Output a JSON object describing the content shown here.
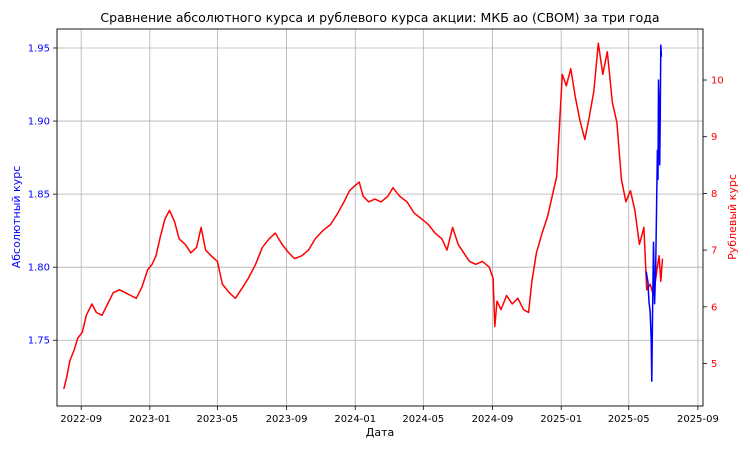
{
  "chart_data": {
    "type": "line",
    "title": "Сравнение абсолютного курса и рублевого курса акции: МКБ ао (CBOM) за три года",
    "xlabel": "Дата",
    "ylabel_left": "Абсолютный курс",
    "ylabel_right": "Рублевый курс",
    "grid": true,
    "x_range": [
      "2022-07-20",
      "2025-09-10"
    ],
    "x_ticks": [
      "2022-09",
      "2023-01",
      "2023-05",
      "2023-09",
      "2024-01",
      "2024-05",
      "2024-09",
      "2025-01",
      "2025-05",
      "2025-09"
    ],
    "y_left_range": [
      1.705,
      1.963
    ],
    "y_left_ticks": [
      "1.75",
      "1.80",
      "1.85",
      "1.90",
      "1.95"
    ],
    "y_right_range": [
      4.25,
      10.9
    ],
    "y_right_ticks": [
      "5",
      "6",
      "7",
      "8",
      "9",
      "10"
    ],
    "colors": {
      "absolute": "#0000ff",
      "ruble": "#ff0000",
      "grid": "#b0b0b0",
      "axis": "#000000"
    },
    "series": [
      {
        "axis": "left",
        "color": "#0000ff",
        "points": [
          [
            "2025-06-01",
            1.797
          ],
          [
            "2025-06-04",
            1.79
          ],
          [
            "2025-06-06",
            1.776
          ],
          [
            "2025-06-08",
            1.77
          ],
          [
            "2025-06-10",
            1.75
          ],
          [
            "2025-06-11",
            1.722
          ],
          [
            "2025-06-12",
            1.76
          ],
          [
            "2025-06-14",
            1.817
          ],
          [
            "2025-06-16",
            1.775
          ],
          [
            "2025-06-18",
            1.8
          ],
          [
            "2025-06-21",
            1.88
          ],
          [
            "2025-06-22",
            1.86
          ],
          [
            "2025-06-23",
            1.928
          ],
          [
            "2025-06-24",
            1.91
          ],
          [
            "2025-06-25",
            1.87
          ],
          [
            "2025-06-26",
            1.9
          ],
          [
            "2025-06-27",
            1.952
          ],
          [
            "2025-06-28",
            1.944
          ]
        ]
      },
      {
        "axis": "right",
        "color": "#ff0000",
        "points": [
          [
            "2022-08-01",
            4.55
          ],
          [
            "2022-08-06",
            4.75
          ],
          [
            "2022-08-12",
            5.05
          ],
          [
            "2022-08-20",
            5.25
          ],
          [
            "2022-08-26",
            5.45
          ],
          [
            "2022-09-03",
            5.55
          ],
          [
            "2022-09-10",
            5.85
          ],
          [
            "2022-09-20",
            6.05
          ],
          [
            "2022-09-28",
            5.9
          ],
          [
            "2022-10-08",
            5.85
          ],
          [
            "2022-10-18",
            6.05
          ],
          [
            "2022-10-28",
            6.25
          ],
          [
            "2022-11-08",
            6.3
          ],
          [
            "2022-11-18",
            6.25
          ],
          [
            "2022-11-28",
            6.2
          ],
          [
            "2022-12-08",
            6.15
          ],
          [
            "2022-12-18",
            6.35
          ],
          [
            "2022-12-28",
            6.65
          ],
          [
            "2023-01-05",
            6.75
          ],
          [
            "2023-01-12",
            6.9
          ],
          [
            "2023-01-20",
            7.25
          ],
          [
            "2023-01-28",
            7.55
          ],
          [
            "2023-02-05",
            7.7
          ],
          [
            "2023-02-14",
            7.5
          ],
          [
            "2023-02-22",
            7.2
          ],
          [
            "2023-03-05",
            7.1
          ],
          [
            "2023-03-15",
            6.95
          ],
          [
            "2023-03-25",
            7.05
          ],
          [
            "2023-04-02",
            7.4
          ],
          [
            "2023-04-10",
            7.0
          ],
          [
            "2023-04-20",
            6.9
          ],
          [
            "2023-05-01",
            6.8
          ],
          [
            "2023-05-10",
            6.4
          ],
          [
            "2023-05-22",
            6.25
          ],
          [
            "2023-06-02",
            6.15
          ],
          [
            "2023-06-12",
            6.3
          ],
          [
            "2023-06-25",
            6.5
          ],
          [
            "2023-07-08",
            6.75
          ],
          [
            "2023-07-20",
            7.05
          ],
          [
            "2023-08-01",
            7.2
          ],
          [
            "2023-08-12",
            7.3
          ],
          [
            "2023-08-24",
            7.1
          ],
          [
            "2023-09-05",
            6.95
          ],
          [
            "2023-09-15",
            6.85
          ],
          [
            "2023-09-28",
            6.9
          ],
          [
            "2023-10-10",
            7.0
          ],
          [
            "2023-10-22",
            7.2
          ],
          [
            "2023-11-05",
            7.35
          ],
          [
            "2023-11-18",
            7.45
          ],
          [
            "2023-12-01",
            7.65
          ],
          [
            "2023-12-12",
            7.85
          ],
          [
            "2023-12-22",
            8.05
          ],
          [
            "2024-01-02",
            8.15
          ],
          [
            "2024-01-08",
            8.2
          ],
          [
            "2024-01-15",
            7.95
          ],
          [
            "2024-01-25",
            7.85
          ],
          [
            "2024-02-05",
            7.9
          ],
          [
            "2024-02-16",
            7.85
          ],
          [
            "2024-02-28",
            7.95
          ],
          [
            "2024-03-08",
            8.1
          ],
          [
            "2024-03-20",
            7.95
          ],
          [
            "2024-04-02",
            7.85
          ],
          [
            "2024-04-15",
            7.65
          ],
          [
            "2024-04-28",
            7.55
          ],
          [
            "2024-05-10",
            7.45
          ],
          [
            "2024-05-22",
            7.3
          ],
          [
            "2024-06-03",
            7.2
          ],
          [
            "2024-06-12",
            7.0
          ],
          [
            "2024-06-22",
            7.4
          ],
          [
            "2024-07-02",
            7.1
          ],
          [
            "2024-07-12",
            6.95
          ],
          [
            "2024-07-22",
            6.8
          ],
          [
            "2024-08-02",
            6.75
          ],
          [
            "2024-08-14",
            6.8
          ],
          [
            "2024-08-26",
            6.7
          ],
          [
            "2024-09-02",
            6.5
          ],
          [
            "2024-09-05",
            5.65
          ],
          [
            "2024-09-09",
            6.1
          ],
          [
            "2024-09-16",
            5.95
          ],
          [
            "2024-09-26",
            6.2
          ],
          [
            "2024-10-06",
            6.05
          ],
          [
            "2024-10-16",
            6.15
          ],
          [
            "2024-10-26",
            5.95
          ],
          [
            "2024-11-04",
            5.9
          ],
          [
            "2024-11-10",
            6.45
          ],
          [
            "2024-11-18",
            6.95
          ],
          [
            "2024-11-28",
            7.3
          ],
          [
            "2024-12-08",
            7.6
          ],
          [
            "2024-12-16",
            7.95
          ],
          [
            "2024-12-24",
            8.3
          ],
          [
            "2024-12-29",
            9.2
          ],
          [
            "2025-01-03",
            10.1
          ],
          [
            "2025-01-10",
            9.9
          ],
          [
            "2025-01-18",
            10.2
          ],
          [
            "2025-01-26",
            9.7
          ],
          [
            "2025-02-03",
            9.3
          ],
          [
            "2025-02-12",
            8.95
          ],
          [
            "2025-02-20",
            9.35
          ],
          [
            "2025-02-28",
            9.8
          ],
          [
            "2025-03-08",
            10.65
          ],
          [
            "2025-03-16",
            10.1
          ],
          [
            "2025-03-24",
            10.5
          ],
          [
            "2025-04-02",
            9.6
          ],
          [
            "2025-04-10",
            9.25
          ],
          [
            "2025-04-18",
            8.25
          ],
          [
            "2025-04-26",
            7.85
          ],
          [
            "2025-05-04",
            8.05
          ],
          [
            "2025-05-12",
            7.7
          ],
          [
            "2025-05-20",
            7.1
          ],
          [
            "2025-05-28",
            7.4
          ],
          [
            "2025-06-02",
            6.3
          ],
          [
            "2025-06-08",
            6.4
          ],
          [
            "2025-06-14",
            6.2
          ],
          [
            "2025-06-20",
            6.65
          ],
          [
            "2025-06-24",
            6.9
          ],
          [
            "2025-06-27",
            6.45
          ],
          [
            "2025-06-30",
            6.85
          ]
        ]
      }
    ]
  }
}
